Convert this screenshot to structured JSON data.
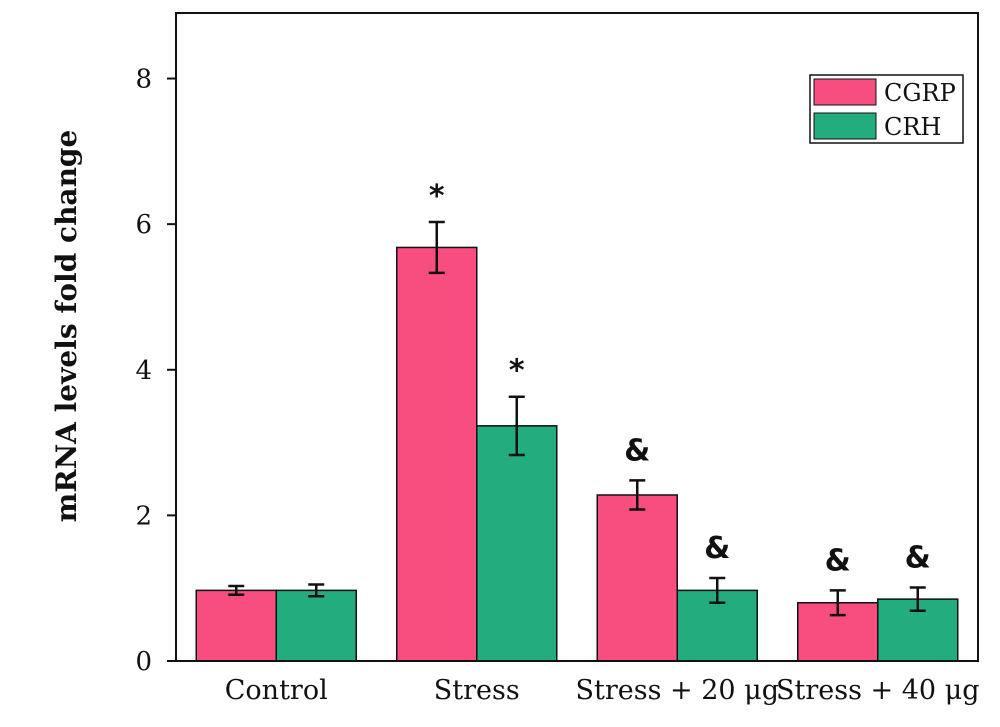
{
  "chart_data": {
    "type": "bar",
    "title": "",
    "xlabel": "",
    "ylabel": "mRNA levels fold change",
    "ylim": [
      0,
      8.9
    ],
    "yticks": [
      0,
      2,
      4,
      6,
      8
    ],
    "grid": false,
    "legend_position": "top-right",
    "categories": [
      "Control",
      "Stress",
      "Stress + 20 μg",
      "Stress + 40 μg"
    ],
    "series": [
      {
        "name": "CGRP",
        "color": "#f74e7f",
        "values": [
          0.97,
          5.68,
          2.28,
          0.8
        ],
        "errors": [
          0.06,
          0.35,
          0.2,
          0.17
        ],
        "annotations": [
          "",
          "*",
          "&",
          "&"
        ]
      },
      {
        "name": "CRH",
        "color": "#23ac7d",
        "values": [
          0.97,
          3.23,
          0.97,
          0.85
        ],
        "errors": [
          0.08,
          0.4,
          0.17,
          0.16
        ],
        "annotations": [
          "",
          "*",
          "&",
          "&"
        ]
      }
    ]
  }
}
